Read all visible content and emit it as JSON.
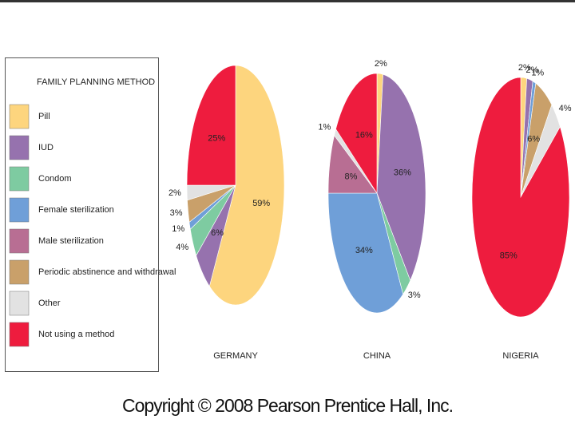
{
  "chart_data": {
    "type": "pie",
    "legend_title": "FAMILY PLANNING METHOD",
    "categories": [
      "Pill",
      "IUD",
      "Condom",
      "Female sterilization",
      "Male sterilization",
      "Periodic abstinence and withdrawal",
      "Other",
      "Not using a method"
    ],
    "colors": [
      "#fdd57e",
      "#9672ae",
      "#7ecba1",
      "#6f9fd8",
      "#b86e93",
      "#c9a06a",
      "#e2e2e2",
      "#ee1c3e"
    ],
    "series": [
      {
        "name": "GERMANY",
        "values": [
          59,
          6,
          4,
          1,
          null,
          3,
          2,
          25
        ],
        "value_labels": [
          "59%",
          "6%",
          "4%",
          "1%",
          null,
          "3%",
          "2%",
          "25%"
        ]
      },
      {
        "name": "CHINA",
        "values": [
          2,
          36,
          3,
          34,
          8,
          null,
          1,
          16
        ],
        "value_labels": [
          "2%",
          "36%",
          "3%",
          "34%",
          "8%",
          null,
          "1%",
          "16%"
        ]
      },
      {
        "name": "NIGERIA",
        "values": [
          2,
          2,
          null,
          1,
          null,
          6,
          4,
          85
        ],
        "value_labels": [
          "2%",
          "2%",
          null,
          "1%",
          null,
          "6%",
          "4%",
          "85%"
        ]
      }
    ]
  },
  "footer": "Copyright © 2008 Pearson Prentice Hall, Inc."
}
